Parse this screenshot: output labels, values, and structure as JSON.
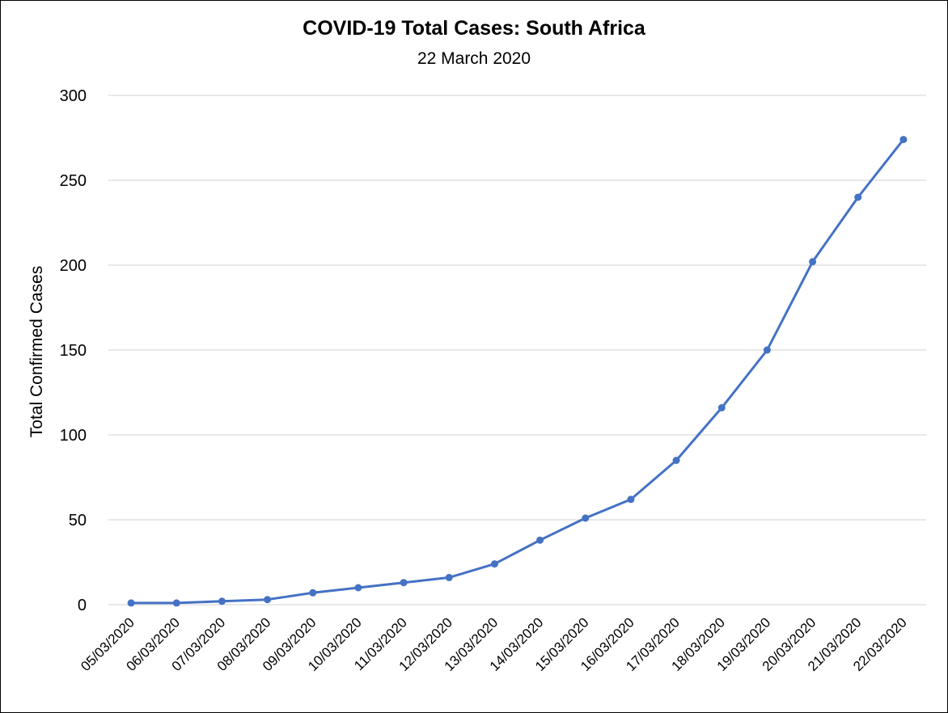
{
  "chart_data": {
    "type": "line",
    "title": "COVID-19 Total Cases: South Africa",
    "subtitle": "22 March 2020",
    "xlabel": "",
    "ylabel": "Total Confirmed Cases",
    "ylim": [
      0,
      300
    ],
    "yticks": [
      0,
      50,
      100,
      150,
      200,
      250,
      300
    ],
    "grid": true,
    "legend": "none",
    "categories": [
      "05/03/2020",
      "06/03/2020",
      "07/03/2020",
      "08/03/2020",
      "09/03/2020",
      "10/03/2020",
      "11/03/2020",
      "12/03/2020",
      "13/03/2020",
      "14/03/2020",
      "15/03/2020",
      "16/03/2020",
      "17/03/2020",
      "18/03/2020",
      "19/03/2020",
      "20/03/2020",
      "21/03/2020",
      "22/03/2020"
    ],
    "series": [
      {
        "values": [
          1,
          1,
          2,
          3,
          7,
          10,
          13,
          16,
          24,
          38,
          51,
          62,
          85,
          116,
          150,
          202,
          240,
          274
        ],
        "color": "#4472c4"
      }
    ]
  }
}
